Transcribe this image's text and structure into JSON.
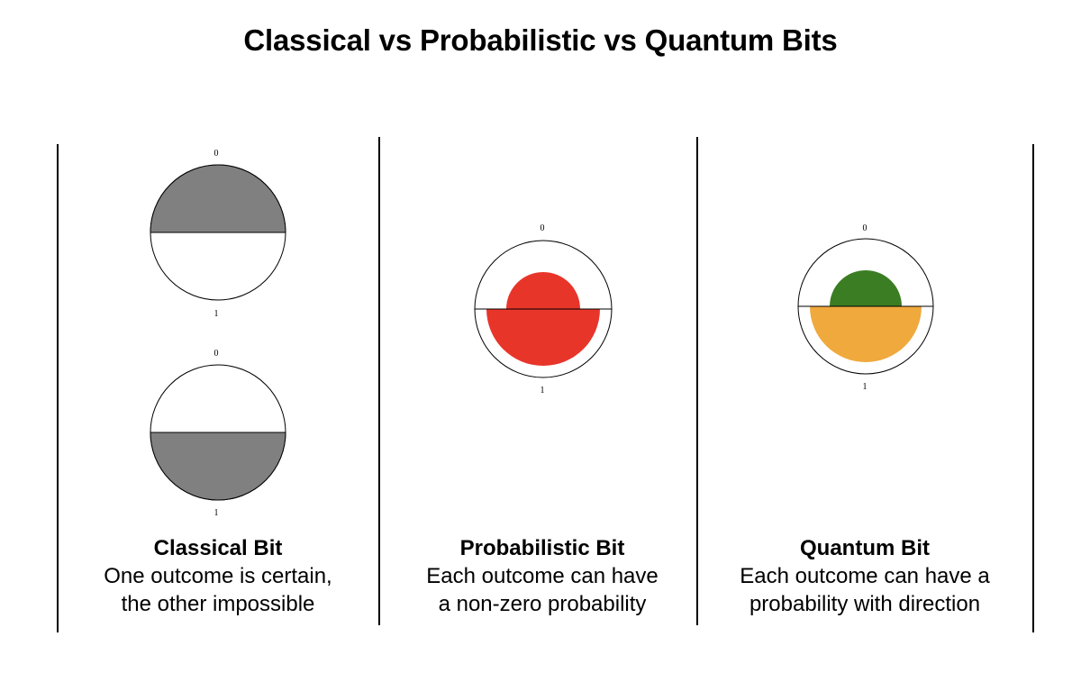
{
  "title": "Classical vs Probabilistic vs Quantum Bits",
  "panels": [
    {
      "heading": "Classical Bit",
      "desc_line1": "One outcome is certain,",
      "desc_line2": "the other impossible",
      "states": [
        {
          "top_label": "0",
          "bottom_label": "1",
          "filled_half": "top",
          "fill_color": "#808080"
        },
        {
          "top_label": "0",
          "bottom_label": "1",
          "filled_half": "bottom",
          "fill_color": "#808080"
        }
      ]
    },
    {
      "heading": "Probabilistic Bit",
      "desc_line1": "Each outcome can have",
      "desc_line2": "a non-zero probability",
      "top_label": "0",
      "bottom_label": "1",
      "colors": {
        "zero": "#e8352a",
        "one": "#e8352a"
      }
    },
    {
      "heading": "Quantum Bit",
      "desc_line1": "Each outcome can have a",
      "desc_line2": "probability with direction",
      "top_label": "0",
      "bottom_label": "1",
      "colors": {
        "zero": "#3a7d22",
        "one": "#f0a93d"
      }
    }
  ]
}
